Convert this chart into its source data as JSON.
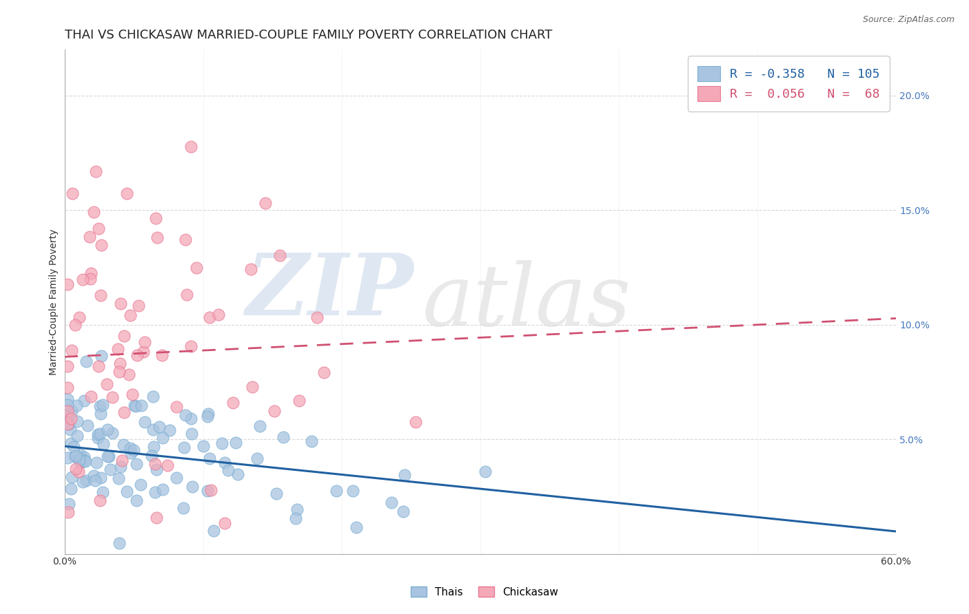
{
  "title": "THAI VS CHICKASAW MARRIED-COUPLE FAMILY POVERTY CORRELATION CHART",
  "source": "Source: ZipAtlas.com",
  "ylabel": "Married-Couple Family Poverty",
  "xlim": [
    0.0,
    0.6
  ],
  "ylim": [
    0.0,
    0.22
  ],
  "xticks": [
    0.0,
    0.1,
    0.2,
    0.3,
    0.4,
    0.5,
    0.6
  ],
  "yticks": [
    0.0,
    0.05,
    0.1,
    0.15,
    0.2
  ],
  "thai_color": "#a8c4e0",
  "thai_edge_color": "#7bafd4",
  "chickasaw_color": "#f4a8b8",
  "chickasaw_edge_color": "#e87a95",
  "thai_line_color": "#2060a0",
  "chickasaw_line_color": "#d05070",
  "thai_R": -0.358,
  "thai_N": 105,
  "chickasaw_R": 0.056,
  "chickasaw_N": 68,
  "grid_color": "#d8d8d8",
  "watermark_zip_color": "#b8c8e0",
  "watermark_atlas_color": "#d0d0d0",
  "background_color": "#ffffff",
  "title_fontsize": 13,
  "axis_label_fontsize": 10,
  "tick_fontsize": 10,
  "legend_fontsize": 13,
  "thai_line_intercept": 0.047,
  "thai_line_slope": -0.062,
  "chickasaw_line_intercept": 0.086,
  "chickasaw_line_slope": 0.028
}
